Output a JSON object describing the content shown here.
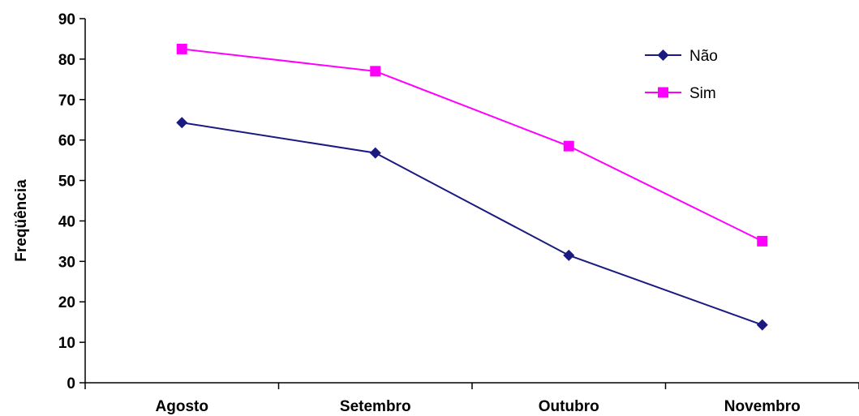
{
  "chart_data": {
    "type": "line",
    "title": "",
    "xlabel": "",
    "ylabel": "Freqüência",
    "categories": [
      "Agosto",
      "Setembro",
      "Outubro",
      "Novembro"
    ],
    "ylim": [
      0,
      90
    ],
    "yticks": [
      0,
      10,
      20,
      30,
      40,
      50,
      60,
      70,
      80,
      90
    ],
    "grid": false,
    "legend_position": "top-right",
    "series": [
      {
        "name": "Não",
        "values": [
          64.3,
          56.8,
          31.5,
          14.3
        ],
        "color": "#1a1a80",
        "marker": "diamond"
      },
      {
        "name": "Sim",
        "values": [
          82.5,
          77,
          58.5,
          35
        ],
        "color": "#ff00ff",
        "marker": "square"
      }
    ]
  }
}
